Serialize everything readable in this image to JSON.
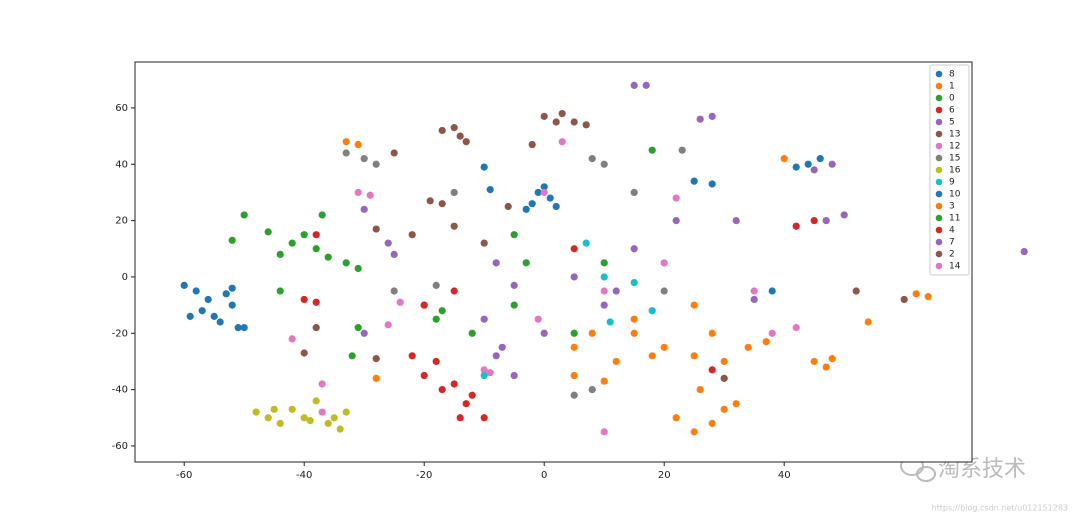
{
  "chart_data": {
    "type": "scatter",
    "xlim": [
      -68.2,
      71.3
    ],
    "ylim": [
      -65.7,
      76.3
    ],
    "xticks": [
      -60,
      -40,
      -20,
      0,
      20,
      40
    ],
    "yticks": [
      -60,
      -40,
      -20,
      0,
      20,
      40,
      60
    ],
    "legend": "upper right",
    "series": [
      {
        "name": "8",
        "color": "#1f77b4",
        "x": [
          -60,
          -58,
          -56,
          -57,
          -55,
          -53,
          -52,
          -51,
          -54,
          -59,
          -52,
          -50
        ],
        "values": [
          -3,
          -5,
          -8,
          -12,
          -14,
          -6,
          -10,
          -18,
          -16,
          -14,
          -4,
          -18
        ]
      },
      {
        "name": "1",
        "color": "#ff7f0e",
        "x": [
          22,
          25,
          28,
          30,
          32,
          26,
          30,
          34,
          37,
          15,
          20,
          12,
          10,
          28,
          54,
          62,
          64
        ],
        "values": [
          -50,
          -55,
          -52,
          -47,
          -45,
          -40,
          -30,
          -25,
          -23,
          -20,
          -25,
          -30,
          -37,
          -20,
          -16,
          -6,
          -7
        ]
      },
      {
        "name": "0",
        "color": "#2ca02c",
        "x": [
          -50,
          -52,
          -46,
          -42,
          -44,
          -38,
          -36,
          -40,
          -37,
          -33,
          -31,
          -44
        ],
        "values": [
          22,
          13,
          16,
          12,
          8,
          10,
          7,
          15,
          22,
          5,
          3,
          -5
        ]
      },
      {
        "name": "6",
        "color": "#d62728",
        "x": [
          -18,
          -20,
          -15,
          -13,
          -10,
          -17,
          -22,
          -14,
          -12
        ],
        "values": [
          -30,
          -35,
          -38,
          -45,
          -50,
          -40,
          -28,
          -50,
          -42
        ]
      },
      {
        "name": "5",
        "color": "#9467bd",
        "x": [
          15,
          17,
          -30,
          -8,
          -7,
          -10,
          -5,
          5,
          -8,
          15,
          22,
          -25,
          12
        ],
        "values": [
          68,
          68,
          -20,
          -28,
          -25,
          -15,
          -3,
          0,
          5,
          10,
          20,
          8,
          -5
        ]
      },
      {
        "name": "13",
        "color": "#8c564b",
        "x": [
          -15,
          -14,
          -13,
          -17,
          -19,
          -17,
          -6,
          -15,
          -22,
          -40,
          -38,
          -28
        ],
        "values": [
          53,
          50,
          48,
          52,
          27,
          26,
          25,
          18,
          15,
          -27,
          -18,
          -29
        ]
      },
      {
        "name": "12",
        "color": "#e377c2",
        "x": [
          -31,
          -24,
          -26,
          -10,
          10,
          20,
          35,
          38,
          -37,
          3
        ],
        "values": [
          30,
          -9,
          -17,
          -33,
          -5,
          5,
          -5,
          -20,
          -38,
          48
        ]
      },
      {
        "name": "15",
        "color": "#7f7f7f",
        "x": [
          -33,
          -30,
          -28,
          8,
          10,
          -15,
          -18,
          5,
          8,
          20,
          23,
          15,
          -25
        ],
        "values": [
          44,
          42,
          40,
          42,
          40,
          30,
          -3,
          -42,
          -40,
          -5,
          45,
          30,
          -5
        ]
      },
      {
        "name": "16",
        "color": "#bcbd22",
        "x": [
          -48,
          -46,
          -44,
          -42,
          -40,
          -38,
          -36,
          -34,
          -33,
          -45,
          -39,
          -35
        ],
        "values": [
          -48,
          -50,
          -52,
          -47,
          -50,
          -44,
          -52,
          -54,
          -48,
          -47,
          -51,
          -50
        ]
      },
      {
        "name": "9",
        "color": "#17becf",
        "x": [
          10,
          15,
          18,
          -10,
          11,
          7
        ],
        "values": [
          0,
          -2,
          -12,
          -35,
          -16,
          12
        ]
      },
      {
        "name": "10",
        "color": "#1f77b4",
        "x": [
          -1,
          1,
          -2,
          0,
          2,
          -3,
          -10,
          -9,
          46,
          44,
          42,
          25,
          28,
          38
        ],
        "values": [
          30,
          28,
          26,
          32,
          25,
          24,
          39,
          31,
          42,
          40,
          39,
          34,
          33,
          -5
        ]
      },
      {
        "name": "3",
        "color": "#ff7f0e",
        "x": [
          5,
          8,
          15,
          18,
          25,
          45,
          47,
          48,
          -28,
          -31,
          -33,
          40,
          25,
          5
        ],
        "values": [
          -25,
          -20,
          -15,
          -28,
          -28,
          -30,
          -32,
          -29,
          -36,
          47,
          48,
          42,
          -10,
          -35
        ]
      },
      {
        "name": "11",
        "color": "#2ca02c",
        "x": [
          -20,
          -18,
          -17,
          -12,
          -5,
          -3,
          5,
          10,
          18,
          -32,
          -31,
          -5
        ],
        "values": [
          -10,
          -15,
          -12,
          -20,
          15,
          5,
          -20,
          5,
          45,
          -28,
          -18,
          -10
        ]
      },
      {
        "name": "4",
        "color": "#d62728",
        "x": [
          -40,
          -38,
          -20,
          -15,
          45,
          42,
          -38,
          28,
          5
        ],
        "values": [
          -8,
          -9,
          -10,
          -5,
          20,
          18,
          15,
          -33,
          10
        ]
      },
      {
        "name": "7",
        "color": "#9467bd",
        "x": [
          26,
          28,
          45,
          48,
          50,
          47,
          80,
          -30,
          -26,
          0,
          -5,
          10,
          35,
          32
        ],
        "values": [
          56,
          57,
          38,
          40,
          22,
          20,
          9,
          24,
          12,
          -20,
          -35,
          -10,
          -8,
          20
        ]
      },
      {
        "name": "2",
        "color": "#8c564b",
        "x": [
          0,
          3,
          5,
          2,
          7,
          -2,
          -25,
          -28,
          30,
          -10,
          52,
          60
        ],
        "values": [
          57,
          58,
          55,
          55,
          54,
          47,
          44,
          17,
          -36,
          12,
          -5,
          -8
        ]
      },
      {
        "name": "14",
        "color": "#e377c2",
        "x": [
          -42,
          -37,
          0,
          -29,
          -9,
          10,
          22,
          42,
          -1
        ],
        "values": [
          -22,
          -48,
          30,
          29,
          -34,
          -55,
          28,
          -18,
          -15
        ]
      }
    ]
  },
  "watermark": [
    "淘系技术",
    "https://blog.csdn.net/u012151283"
  ]
}
